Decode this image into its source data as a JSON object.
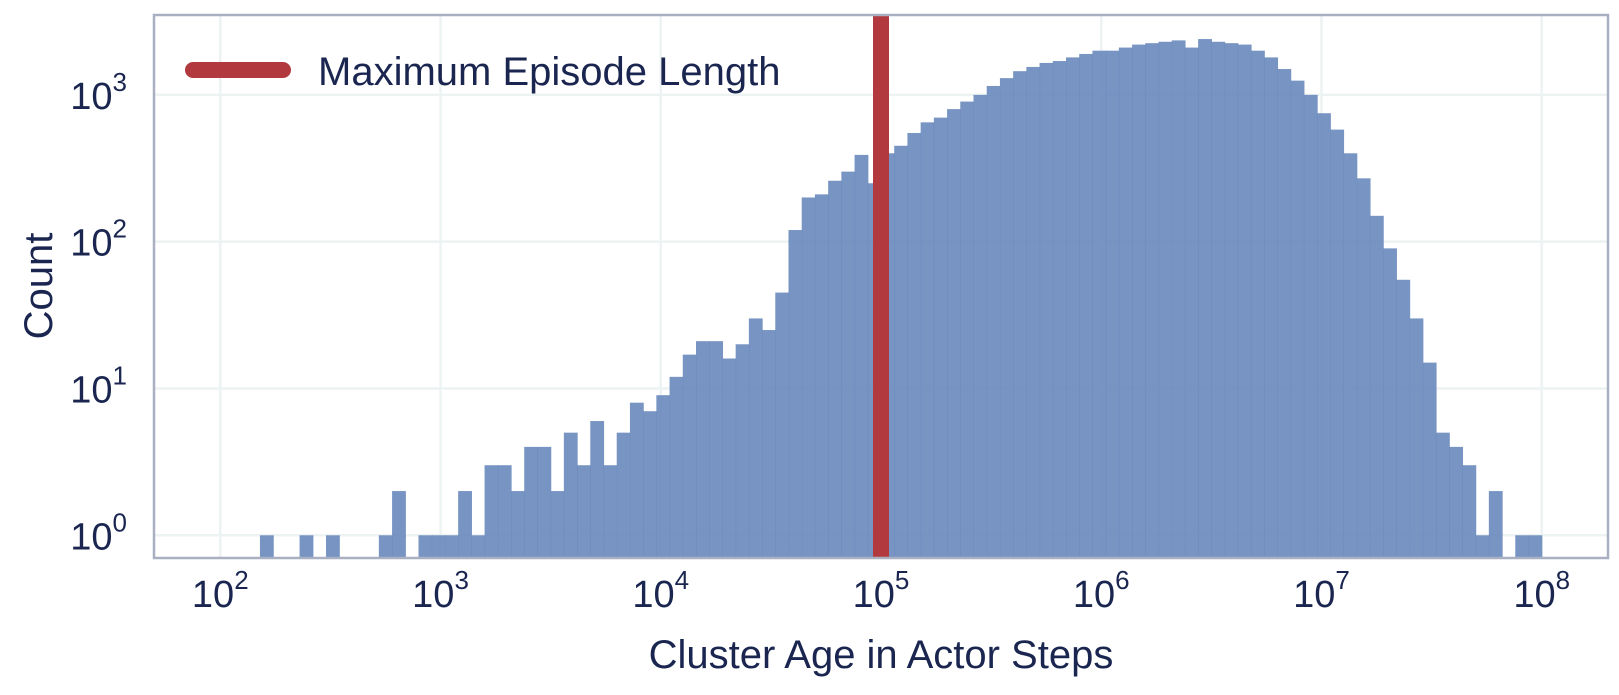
{
  "chart_data": {
    "type": "bar",
    "subtype": "histogram",
    "title": "",
    "xlabel": "Cluster Age in Actor Steps",
    "ylabel": "Count",
    "x_scale": "log",
    "y_scale": "log",
    "xlim": [
      50,
      200000000
    ],
    "ylim": [
      0.7,
      3500
    ],
    "x_ticks": [
      {
        "value": 100,
        "base": "10",
        "exp": "2"
      },
      {
        "value": 1000,
        "base": "10",
        "exp": "3"
      },
      {
        "value": 10000,
        "base": "10",
        "exp": "4"
      },
      {
        "value": 100000,
        "base": "10",
        "exp": "5"
      },
      {
        "value": 1000000,
        "base": "10",
        "exp": "6"
      },
      {
        "value": 10000000,
        "base": "10",
        "exp": "7"
      },
      {
        "value": 100000000,
        "base": "10",
        "exp": "8"
      }
    ],
    "y_ticks": [
      {
        "value": 1,
        "base": "10",
        "exp": "0"
      },
      {
        "value": 10,
        "base": "10",
        "exp": "1"
      },
      {
        "value": 100,
        "base": "10",
        "exp": "2"
      },
      {
        "value": 1000,
        "base": "10",
        "exp": "3"
      }
    ],
    "bin_edges_log10": [
      2.0,
      2.06,
      2.12,
      2.18,
      2.24,
      2.3,
      2.36,
      2.42,
      2.48,
      2.54,
      2.6,
      2.66,
      2.72,
      2.78,
      2.84,
      2.9,
      2.96,
      3.02,
      3.08,
      3.14,
      3.2,
      3.26,
      3.32,
      3.38,
      3.44,
      3.5,
      3.56,
      3.62,
      3.68,
      3.74,
      3.8,
      3.86,
      3.92,
      3.98,
      4.04,
      4.1,
      4.16,
      4.22,
      4.28,
      4.34,
      4.4,
      4.46,
      4.52,
      4.58,
      4.64,
      4.7,
      4.76,
      4.82,
      4.88,
      4.94,
      5.0,
      5.06,
      5.12,
      5.18,
      5.24,
      5.3,
      5.36,
      5.42,
      5.48,
      5.54,
      5.6,
      5.66,
      5.72,
      5.78,
      5.84,
      5.9,
      5.96,
      6.02,
      6.08,
      6.14,
      6.2,
      6.26,
      6.32,
      6.38,
      6.44,
      6.5,
      6.56,
      6.62,
      6.68,
      6.74,
      6.8,
      6.86,
      6.92,
      6.98,
      7.04,
      7.1,
      7.16,
      7.22,
      7.28,
      7.34,
      7.4,
      7.46,
      7.52,
      7.58,
      7.64,
      7.7,
      7.76,
      7.82,
      7.88,
      7.94,
      8.0
    ],
    "counts": [
      0,
      0,
      0,
      1,
      0,
      0,
      1,
      0,
      1,
      0,
      0,
      0,
      1,
      2,
      0,
      1,
      1,
      1,
      2,
      1,
      3,
      3,
      2,
      4,
      4,
      2,
      5,
      3,
      6,
      3,
      5,
      8,
      7,
      9,
      12,
      17,
      21,
      21,
      16,
      20,
      30,
      25,
      45,
      120,
      200,
      210,
      260,
      300,
      390,
      250,
      400,
      450,
      550,
      650,
      700,
      800,
      900,
      1000,
      1150,
      1300,
      1450,
      1550,
      1650,
      1700,
      1800,
      1900,
      2000,
      2000,
      2100,
      2200,
      2250,
      2300,
      2350,
      2100,
      2400,
      2300,
      2250,
      2200,
      2000,
      1800,
      1500,
      1250,
      1000,
      750,
      580,
      400,
      270,
      150,
      90,
      55,
      30,
      15,
      5,
      4,
      3,
      1,
      2,
      0,
      1,
      1
    ],
    "series": [
      {
        "name": "",
        "color": "#6b8bbe"
      }
    ],
    "reference_line": {
      "x": 100000,
      "label": "Maximum Episode Length",
      "color": "#b23a3e"
    },
    "grid": true,
    "legend_position": "top-left"
  }
}
